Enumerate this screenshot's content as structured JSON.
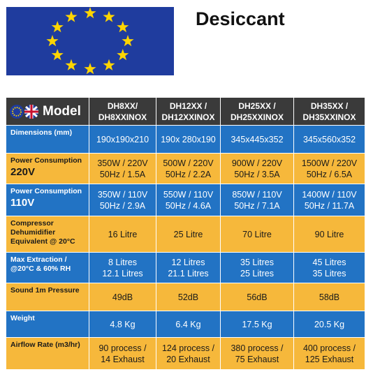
{
  "header": {
    "title": "Desiccant"
  },
  "table": {
    "columns": [
      "Model",
      "DH8XX/\nDH8XXINOX",
      "DH12XX /\nDH12XXINOX",
      "DH25XX /\nDH25XXINOX",
      "DH35XX /\nDH35XXINOX"
    ],
    "rows": [
      {
        "label": [
          "Dimensions (mm)"
        ],
        "cells": [
          [
            "190x190x210"
          ],
          [
            "190x 280x190"
          ],
          [
            "345x445x352"
          ],
          [
            "345x560x352"
          ]
        ]
      },
      {
        "label": [
          "Power Consumption",
          "220V"
        ],
        "cells": [
          [
            "350W / 220V",
            "50Hz / 1.5A"
          ],
          [
            "500W / 220V",
            "50Hz / 2.2A"
          ],
          [
            "900W / 220V",
            "50Hz / 3.5A"
          ],
          [
            "1500W / 220V",
            "50Hz / 6.5A"
          ]
        ]
      },
      {
        "label": [
          "Power Consumption",
          "110V"
        ],
        "cells": [
          [
            "350W / 110V",
            "50Hz / 2.9A"
          ],
          [
            "550W / 110V",
            "50Hz / 4.6A"
          ],
          [
            "850W / 110V",
            "50Hz / 7.1A"
          ],
          [
            "1400W / 110V",
            "50Hz / 11.7A"
          ]
        ]
      },
      {
        "label": [
          "Compressor",
          "Dehumidifier",
          "Equivalent @ 20°C"
        ],
        "cells": [
          [
            "16 Litre"
          ],
          [
            "25 Litre"
          ],
          [
            "70 Litre"
          ],
          [
            "90 Litre"
          ]
        ]
      },
      {
        "label": [
          "Max  Extraction /",
          "@20°C & 60% RH"
        ],
        "cells": [
          [
            "8 Litres",
            "12.1 Litres"
          ],
          [
            "12 Litres",
            "21.1 Litres"
          ],
          [
            "35 Litres",
            "25 Litres"
          ],
          [
            "45 Litres",
            "35 Litres"
          ]
        ]
      },
      {
        "label": [
          "Sound  1m  Pressure"
        ],
        "cells": [
          [
            "49dB"
          ],
          [
            "52dB"
          ],
          [
            "56dB"
          ],
          [
            "58dB"
          ]
        ]
      },
      {
        "label": [
          "Weight"
        ],
        "cells": [
          [
            "4.8 Kg"
          ],
          [
            "6.4 Kg"
          ],
          [
            "17.5 Kg"
          ],
          [
            "20.5 Kg"
          ]
        ]
      },
      {
        "label": [
          "Airflow Rate (m3/hr)"
        ],
        "cells": [
          [
            "90 process /",
            "14 Exhaust"
          ],
          [
            "124 process /",
            "20 Exhaust"
          ],
          [
            "380 process /",
            "75 Exhaust"
          ],
          [
            "400 process /",
            "125 Exhaust"
          ]
        ]
      }
    ]
  }
}
